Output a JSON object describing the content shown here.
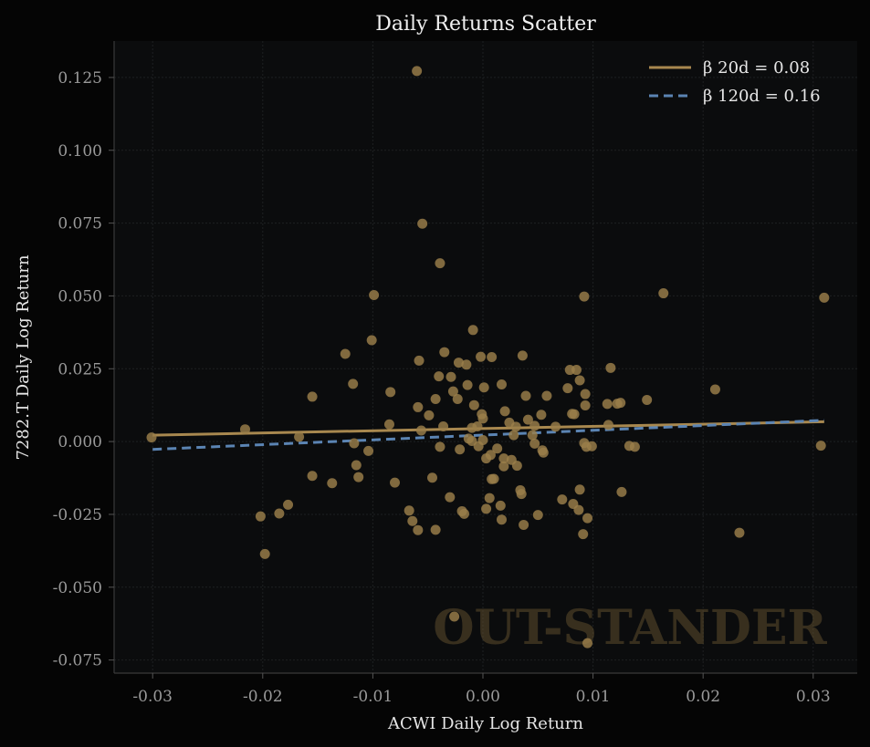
{
  "chart_data": {
    "type": "scatter",
    "title": "Daily Returns Scatter",
    "xlabel": "ACWI Daily Log Return",
    "ylabel": "7282.T Daily Log Return",
    "xlim": [
      -0.0335,
      0.034
    ],
    "ylim": [
      -0.0795,
      0.1375
    ],
    "xticks": [
      -0.03,
      -0.02,
      -0.01,
      0.0,
      0.01,
      0.02,
      0.03
    ],
    "xtick_labels": [
      "-0.03",
      "-0.02",
      "-0.01",
      "0.00",
      "0.01",
      "0.02",
      "0.03"
    ],
    "yticks": [
      -0.075,
      -0.05,
      -0.025,
      0.0,
      0.025,
      0.05,
      0.075,
      0.1,
      0.125
    ],
    "ytick_labels": [
      "-0.075",
      "-0.050",
      "-0.025",
      "0.000",
      "0.025",
      "0.050",
      "0.075",
      "0.100",
      "0.125"
    ],
    "grid": true,
    "legend_position": "top-right",
    "watermark": "OUT-STANDER",
    "colors": {
      "background": "#050505",
      "plot_background": "#0b0c0d",
      "points": "#9b7f4b",
      "line_20d": "#a8884f",
      "line_120d": "#5b84b3",
      "grid": "#1e2022",
      "axis": "#3a3a3a"
    },
    "lines": [
      {
        "name": "β 20d = 0.08",
        "style": "solid",
        "color": "#a8884f",
        "x": [
          -0.03,
          0.031
        ],
        "y": [
          0.0022,
          0.0068
        ]
      },
      {
        "name": "β 120d = 0.16",
        "style": "dashed",
        "color": "#5b84b3",
        "x": [
          -0.03,
          0.031
        ],
        "y": [
          -0.0027,
          0.0073
        ]
      }
    ],
    "points": [
      [
        -0.0301,
        0.0014
      ],
      [
        -0.0216,
        0.0042
      ],
      [
        -0.0202,
        -0.0257
      ],
      [
        -0.0198,
        -0.0386
      ],
      [
        -0.0185,
        -0.0247
      ],
      [
        -0.0177,
        -0.0217
      ],
      [
        -0.0167,
        0.0016
      ],
      [
        -0.0155,
        0.0154
      ],
      [
        -0.0155,
        -0.0118
      ],
      [
        -0.0137,
        -0.0143
      ],
      [
        -0.0125,
        0.0301
      ],
      [
        -0.0118,
        0.0198
      ],
      [
        -0.0117,
        -0.0006
      ],
      [
        -0.0115,
        -0.0081
      ],
      [
        -0.0113,
        -0.0122
      ],
      [
        -0.0104,
        -0.0032
      ],
      [
        -0.0101,
        0.0348
      ],
      [
        -0.0099,
        0.0503
      ],
      [
        -0.0084,
        0.017
      ],
      [
        -0.0085,
        0.0059
      ],
      [
        -0.008,
        -0.0141
      ],
      [
        -0.0067,
        -0.0237
      ],
      [
        -0.0064,
        -0.0273
      ],
      [
        -0.006,
        0.1272
      ],
      [
        -0.0059,
        0.0118
      ],
      [
        -0.0059,
        -0.0304
      ],
      [
        -0.0058,
        0.0278
      ],
      [
        -0.0056,
        0.0038
      ],
      [
        -0.0055,
        0.0748
      ],
      [
        -0.0049,
        0.009
      ],
      [
        -0.0046,
        -0.0124
      ],
      [
        -0.0043,
        0.0146
      ],
      [
        -0.0043,
        -0.0303
      ],
      [
        -0.004,
        0.0224
      ],
      [
        -0.0039,
        0.0612
      ],
      [
        -0.0039,
        -0.0018
      ],
      [
        -0.0036,
        0.0052
      ],
      [
        -0.0035,
        0.0307
      ],
      [
        -0.003,
        -0.0191
      ],
      [
        -0.0029,
        0.0222
      ],
      [
        -0.0027,
        0.0172
      ],
      [
        -0.0026,
        -0.0601
      ],
      [
        -0.0023,
        0.0146
      ],
      [
        -0.0022,
        0.0271
      ],
      [
        -0.0021,
        -0.0027
      ],
      [
        -0.0019,
        -0.0239
      ],
      [
        -0.0017,
        -0.0248
      ],
      [
        -0.0015,
        0.0264
      ],
      [
        -0.0014,
        0.0194
      ],
      [
        -0.0013,
        0.001
      ],
      [
        -0.001,
        0.0047
      ],
      [
        -0.001,
        0.0002
      ],
      [
        -0.0009,
        0.0383
      ],
      [
        -0.0008,
        0.0125
      ],
      [
        -0.0005,
        0.0052
      ],
      [
        -0.0004,
        -0.0016
      ],
      [
        -0.0002,
        0.0291
      ],
      [
        -0.0001,
        0.0094
      ],
      [
        0.0,
        0.0079
      ],
      [
        0.0,
        0.0005
      ],
      [
        0.0001,
        0.0186
      ],
      [
        0.0003,
        -0.0231
      ],
      [
        0.0003,
        -0.0058
      ],
      [
        0.0006,
        -0.0194
      ],
      [
        0.0007,
        -0.0046
      ],
      [
        0.0008,
        0.029
      ],
      [
        0.0008,
        -0.0129
      ],
      [
        0.001,
        -0.0128
      ],
      [
        0.0013,
        -0.0024
      ],
      [
        0.0016,
        -0.022
      ],
      [
        0.0017,
        -0.0268
      ],
      [
        0.0017,
        0.0196
      ],
      [
        0.0019,
        -0.0085
      ],
      [
        0.0019,
        -0.0058
      ],
      [
        0.002,
        0.0104
      ],
      [
        0.0024,
        0.0065
      ],
      [
        0.0026,
        -0.0063
      ],
      [
        0.0028,
        0.0022
      ],
      [
        0.003,
        0.0051
      ],
      [
        0.0031,
        -0.0083
      ],
      [
        0.0034,
        -0.0167
      ],
      [
        0.0035,
        -0.018
      ],
      [
        0.0036,
        0.0295
      ],
      [
        0.0037,
        -0.0286
      ],
      [
        0.0039,
        0.0157
      ],
      [
        0.0041,
        0.0075
      ],
      [
        0.0045,
        0.0022
      ],
      [
        0.0047,
        0.0054
      ],
      [
        0.0047,
        -0.0007
      ],
      [
        0.005,
        -0.0252
      ],
      [
        0.0053,
        0.0092
      ],
      [
        0.0054,
        -0.003
      ],
      [
        0.0055,
        -0.0038
      ],
      [
        0.0058,
        0.0157
      ],
      [
        0.0066,
        0.0051
      ],
      [
        0.0072,
        -0.0199
      ],
      [
        0.0077,
        0.0183
      ],
      [
        0.0079,
        0.0246
      ],
      [
        0.0081,
        0.0095
      ],
      [
        0.0082,
        -0.0214
      ],
      [
        0.0083,
        0.0094
      ],
      [
        0.0085,
        0.0246
      ],
      [
        0.0087,
        -0.0235
      ],
      [
        0.0088,
        0.021
      ],
      [
        0.0088,
        -0.0165
      ],
      [
        0.0091,
        -0.0318
      ],
      [
        0.0092,
        -0.0005
      ],
      [
        0.0092,
        0.0498
      ],
      [
        0.0093,
        0.0124
      ],
      [
        0.0093,
        0.0163
      ],
      [
        0.0094,
        -0.0018
      ],
      [
        0.0095,
        -0.0263
      ],
      [
        0.0095,
        -0.0692
      ],
      [
        0.0099,
        -0.0016
      ],
      [
        0.0113,
        0.0129
      ],
      [
        0.0114,
        0.0057
      ],
      [
        0.0116,
        0.0253
      ],
      [
        0.0122,
        0.013
      ],
      [
        0.0125,
        0.0133
      ],
      [
        0.0126,
        -0.0173
      ],
      [
        0.0133,
        -0.0015
      ],
      [
        0.0138,
        -0.0018
      ],
      [
        0.0149,
        0.0143
      ],
      [
        0.0164,
        0.0509
      ],
      [
        0.0211,
        0.0179
      ],
      [
        0.0233,
        -0.0313
      ],
      [
        0.0307,
        -0.0014
      ],
      [
        0.031,
        0.0494
      ]
    ]
  }
}
